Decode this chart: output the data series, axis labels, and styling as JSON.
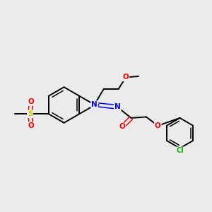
{
  "background_color": "#ebebeb",
  "bond_color": "#000000",
  "atom_colors": {
    "N": "#0000ff",
    "O": "#ff0000",
    "S": "#cccc00",
    "Cl": "#00bb00",
    "C": "#000000"
  },
  "figsize": [
    3.0,
    3.0
  ],
  "dpi": 100
}
